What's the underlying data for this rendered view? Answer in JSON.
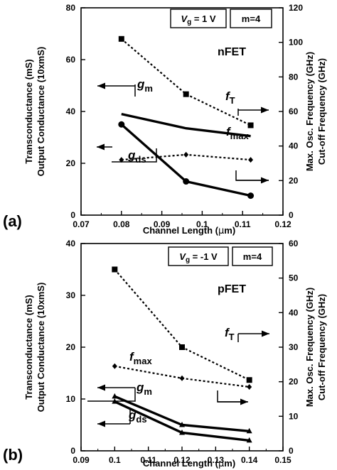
{
  "chart_data": [
    {
      "type": "line",
      "panel_label": "(a)",
      "device": "nFET",
      "gate_voltage": "V_g = 1 V",
      "gate_voltage_parts": [
        "V",
        "g",
        "= 1 V"
      ],
      "multiplicity": "m=4",
      "xlabel": "Channel Length (μm)",
      "xlabel_parts": [
        "Channel Length (",
        "μ",
        "m)"
      ],
      "ylabel_left": [
        "Transconductance (mS)",
        "Output Conductance (10xmS)"
      ],
      "ylabel_right": [
        "Max. Osc. Frequency (GHz)",
        "Cut-off Frequency (GHz)"
      ],
      "xlim": [
        0.07,
        0.12
      ],
      "xticks": [
        "0.07",
        "0.08",
        "0.09",
        "0.1",
        "0.11",
        "0.12"
      ],
      "ylim_left": [
        0,
        80
      ],
      "yticks_left": [
        "0",
        "20",
        "40",
        "60",
        "80"
      ],
      "ylim_right": [
        0,
        120
      ],
      "yticks_right": [
        "0",
        "20",
        "40",
        "60",
        "80",
        "100",
        "120"
      ],
      "grid": false,
      "series": [
        {
          "name": "g_m",
          "label_main": "g",
          "label_sub": "m",
          "axis": "left",
          "style": "solid-thick",
          "marker": "none",
          "x": [
            0.08,
            0.096,
            0.112
          ],
          "y": [
            39,
            33.5,
            30.5
          ]
        },
        {
          "name": "g_ds",
          "label_main": "g",
          "label_sub": "ds",
          "axis": "left",
          "style": "solid-thick",
          "marker": "circle",
          "x": [
            0.08,
            0.096,
            0.112
          ],
          "y": [
            35,
            13,
            7.5
          ]
        },
        {
          "name": "f_T",
          "label_main": "f",
          "label_sub": "T",
          "axis": "right",
          "style": "dotted",
          "marker": "square",
          "x": [
            0.08,
            0.096,
            0.112
          ],
          "y": [
            102,
            70,
            52
          ]
        },
        {
          "name": "f_max",
          "label_main": "f",
          "label_sub": "max",
          "axis": "right",
          "style": "dotted",
          "marker": "diamond",
          "x": [
            0.08,
            0.096,
            0.112
          ],
          "y": [
            32,
            35,
            32
          ]
        }
      ]
    },
    {
      "type": "line",
      "panel_label": "(b)",
      "device": "pFET",
      "gate_voltage": "V_g = -1 V",
      "gate_voltage_parts": [
        "V",
        "g",
        "= -1 V"
      ],
      "multiplicity": "m=4",
      "xlabel": "Channel Length (μm)",
      "xlabel_parts": [
        "Channel Length (",
        "μ",
        "m)"
      ],
      "ylabel_left": [
        "Transconductance (mS)",
        "Output Conductance (10xmS)"
      ],
      "ylabel_right": [
        "Max. Osc. Frequency (GHz)",
        "Cut-off Frequency (GHz)"
      ],
      "xlim": [
        0.09,
        0.15
      ],
      "xticks": [
        "0.09",
        "0.1",
        "0.11",
        "0.12",
        "0.13",
        "0.14",
        "0.15"
      ],
      "ylim_left": [
        0,
        40
      ],
      "yticks_left": [
        "0",
        "10",
        "20",
        "30",
        "40"
      ],
      "ylim_right": [
        0,
        60
      ],
      "yticks_right": [
        "0",
        "10",
        "20",
        "30",
        "40",
        "50",
        "60"
      ],
      "grid": false,
      "series": [
        {
          "name": "g_m",
          "label_main": "g",
          "label_sub": "m",
          "axis": "left",
          "style": "solid-thick",
          "marker": "triangle",
          "x": [
            0.1,
            0.12,
            0.14
          ],
          "y": [
            10.5,
            5,
            3.8
          ]
        },
        {
          "name": "g_ds",
          "label_main": "g",
          "label_sub": "ds",
          "axis": "left",
          "style": "solid-thick",
          "marker": "triangle",
          "x": [
            0.1,
            0.12,
            0.14
          ],
          "y": [
            9.5,
            3.5,
            2
          ]
        },
        {
          "name": "f_T",
          "label_main": "f",
          "label_sub": "T",
          "axis": "right",
          "style": "dotted",
          "marker": "square",
          "x": [
            0.1,
            0.12,
            0.14
          ],
          "y": [
            52.5,
            30,
            20.5
          ]
        },
        {
          "name": "f_max",
          "label_main": "f",
          "label_sub": "max",
          "axis": "right",
          "style": "dotted",
          "marker": "diamond",
          "x": [
            0.1,
            0.12,
            0.14
          ],
          "y": [
            24.5,
            21,
            18.5
          ]
        }
      ]
    }
  ]
}
